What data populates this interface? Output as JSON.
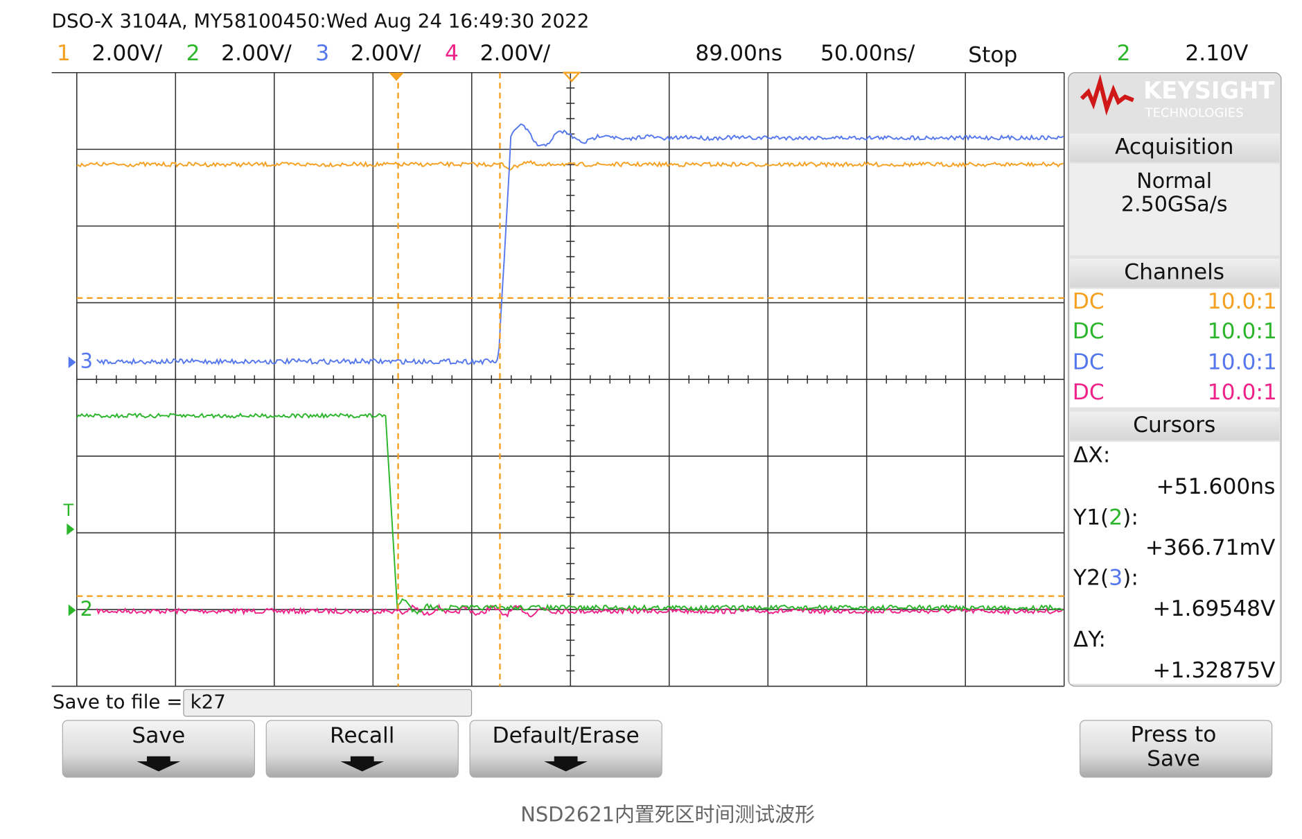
{
  "header": {
    "title": "DSO-X 3104A, MY58100450:Wed Aug 24 16:49:30 2022",
    "channels": [
      {
        "number": "1",
        "scale": "2.00V/"
      },
      {
        "number": "2",
        "scale": "2.00V/"
      },
      {
        "number": "3",
        "scale": "2.00V/"
      },
      {
        "number": "4",
        "scale": "2.00V/"
      }
    ],
    "delay": "89.00ns",
    "timebase": "50.00ns/",
    "status": "Stop",
    "trigger_channel": "2",
    "trigger_level": "2.10V"
  },
  "screen": {
    "markers": {
      "ch3": "3",
      "ch2": "2",
      "trigger": "T"
    }
  },
  "panel": {
    "logo": {
      "brand": "KEYSIGHT",
      "sub": "TECHNOLOGIES"
    },
    "acquisition": {
      "title": "Acquisition",
      "mode": "Normal",
      "rate": "2.50GSa/s"
    },
    "channels": {
      "title": "Channels",
      "rows": [
        {
          "coupling": "DC",
          "probe": "10.0:1"
        },
        {
          "coupling": "DC",
          "probe": "10.0:1"
        },
        {
          "coupling": "DC",
          "probe": "10.0:1"
        },
        {
          "coupling": "DC",
          "probe": "10.0:1"
        }
      ]
    },
    "cursors": {
      "title": "Cursors",
      "dx_label": "ΔX:",
      "dx": "+51.600ns",
      "y1": {
        "prefix": "Y1(",
        "channel": "2",
        "suffix": "):"
      },
      "y1_value": "+366.71mV",
      "y2": {
        "prefix": "Y2(",
        "channel": "3",
        "suffix": "):"
      },
      "y2_value": "+1.69548V",
      "dy_label": "ΔY:",
      "dy": "+1.32875V"
    }
  },
  "footer": {
    "save_label": "Save to file =",
    "file_name": "k27",
    "buttons": [
      "Save",
      "Recall",
      "Default/Erase"
    ],
    "press": [
      "Press to",
      "Save"
    ]
  },
  "caption": "NSD2621内置死区时间测试波形"
}
